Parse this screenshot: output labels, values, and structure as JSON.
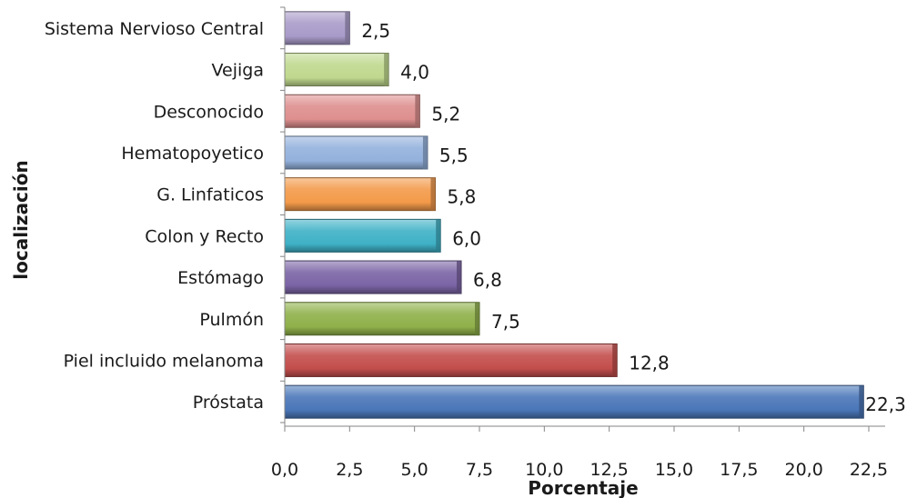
{
  "chart_data": {
    "type": "bar",
    "orientation": "horizontal",
    "title": "",
    "xlabel": "Porcentaje",
    "ylabel": "localización",
    "categories": [
      "Sistema Nervioso Central",
      "Vejiga",
      "Desconocido",
      "Hematopoyetico",
      "G. Linfaticos",
      "Colon y Recto",
      "Estómago",
      "Pulmón",
      "Piel incluido melanoma",
      "Próstata"
    ],
    "values": [
      2.5,
      4.0,
      5.2,
      5.5,
      5.8,
      6.0,
      6.8,
      7.5,
      12.8,
      22.3
    ],
    "value_labels": [
      "2,5",
      "4,0",
      "5,2",
      "5,5",
      "5,8",
      "6,0",
      "6,8",
      "7,5",
      "12,8",
      "22,3"
    ],
    "bar_colors": [
      "#a99bc9",
      "#bfd88e",
      "#dd8f8e",
      "#93b1dc",
      "#f39a4a",
      "#3fb1c6",
      "#7b64a5",
      "#8fb04a",
      "#c34e4c",
      "#4a76b8"
    ],
    "xlim": [
      0,
      22.5
    ],
    "x_ticks": [
      0,
      2.5,
      5,
      7.5,
      10,
      12.5,
      15,
      17.5,
      20,
      22.5
    ],
    "x_tick_labels": [
      "0,0",
      "2,5",
      "5,0",
      "7,5",
      "10,0",
      "12,5",
      "15,0",
      "17,5",
      "20,0",
      "22,5"
    ],
    "grid": false,
    "legend": "none"
  }
}
